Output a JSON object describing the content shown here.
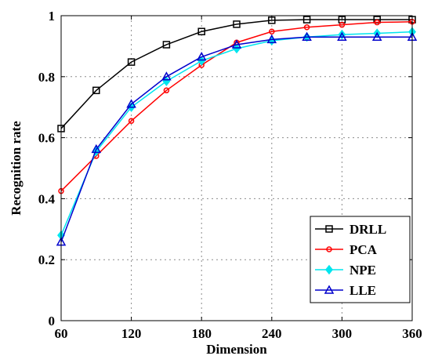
{
  "chart_data": {
    "type": "line",
    "title": "",
    "xlabel": "Dimension",
    "ylabel": "Recognition rate",
    "xlim": [
      60,
      360
    ],
    "ylim": [
      0,
      1
    ],
    "xticks": [
      60,
      120,
      180,
      240,
      300,
      360
    ],
    "yticks": [
      0,
      0.2,
      0.4,
      0.6,
      0.8,
      1
    ],
    "ytick_labels": [
      "0",
      "0.2",
      "0.4",
      "0.6",
      "0.8",
      "1"
    ],
    "grid": true,
    "legend_position": "bottom-right",
    "x": [
      60,
      90,
      120,
      150,
      180,
      210,
      240,
      270,
      300,
      330,
      360
    ],
    "series": [
      {
        "name": "DRLL",
        "color": "#000000",
        "marker": "square",
        "values": [
          0.63,
          0.755,
          0.848,
          0.905,
          0.948,
          0.972,
          0.985,
          0.987,
          0.987,
          0.987,
          0.987
        ]
      },
      {
        "name": "PCA",
        "color": "#ff0000",
        "marker": "circle",
        "values": [
          0.425,
          0.54,
          0.655,
          0.755,
          0.838,
          0.912,
          0.948,
          0.962,
          0.97,
          0.978,
          0.98
        ]
      },
      {
        "name": "NPE",
        "color": "#00e5ee",
        "marker": "diamond",
        "values": [
          0.28,
          0.555,
          0.7,
          0.785,
          0.852,
          0.892,
          0.918,
          0.93,
          0.938,
          0.942,
          0.947
        ]
      },
      {
        "name": "LLE",
        "color": "#0000cc",
        "marker": "triangle",
        "values": [
          0.258,
          0.562,
          0.71,
          0.8,
          0.865,
          0.905,
          0.922,
          0.93,
          0.93,
          0.93,
          0.93
        ]
      }
    ]
  }
}
